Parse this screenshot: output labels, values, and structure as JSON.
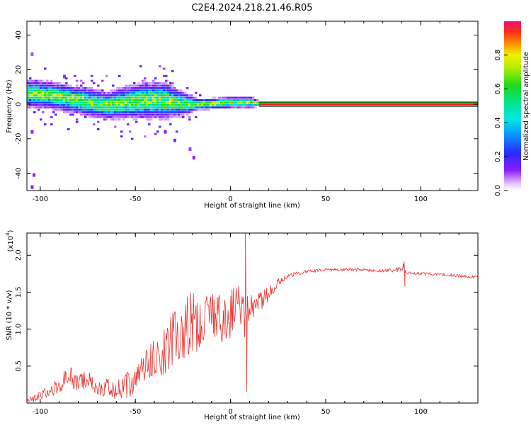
{
  "title": "C2E4.2024.218.21.46.R05",
  "colors": {
    "snr_line": "#e8302e",
    "band_red": "#ee1c22",
    "band_green": "#1fd11f",
    "band_yellow": "#e6e600"
  },
  "chart_data": [
    {
      "type": "heatmap",
      "xlabel": "Height of straight line (km)",
      "ylabel": "Frequency (Hz)",
      "xlim": [
        -107,
        130
      ],
      "ylim": [
        -50,
        48
      ],
      "xticks": [
        "-100",
        "-50",
        "0",
        "50",
        "100"
      ],
      "xtick_values": [
        -100,
        -50,
        0,
        50,
        100
      ],
      "yticks": [
        "-40",
        "-20",
        "0",
        "20",
        "40"
      ],
      "ytick_values": [
        -40,
        -20,
        0,
        20,
        40
      ],
      "colorbar": {
        "label": "Normalized spectral amplitude",
        "range": [
          0,
          1
        ],
        "ticks": [
          "0.0",
          "0.2",
          "0.4",
          "0.6",
          "0.8"
        ],
        "tick_values": [
          0,
          0.2,
          0.4,
          0.6,
          0.8
        ]
      },
      "signal_track": {
        "description_free": true,
        "x": [
          -105,
          -95,
          -85,
          -75,
          -65,
          -55,
          -45,
          -35,
          -25,
          -18,
          -10,
          0,
          10,
          15,
          50,
          100,
          130
        ],
        "frequency": [
          6,
          5,
          3,
          1,
          -1,
          1,
          2,
          2,
          0,
          0,
          0,
          1,
          1,
          0,
          0,
          0,
          0
        ],
        "spread_hz": [
          6,
          6,
          6,
          6,
          6,
          7,
          8,
          8,
          5,
          3,
          3,
          3,
          3,
          1.5,
          1.5,
          1.5,
          1.5
        ]
      }
    },
    {
      "type": "line",
      "xlabel": "Height of straight line (km)",
      "ylabel": "SNR (10 * v/v)",
      "scale_label": "(x10^4)",
      "scale_base": "(x10",
      "scale_exp": "4",
      "xlim": [
        -107,
        130
      ],
      "ylim": [
        0,
        2.3
      ],
      "xticks": [
        "-100",
        "-50",
        "0",
        "50",
        "100"
      ],
      "xtick_values": [
        -100,
        -50,
        0,
        50,
        100
      ],
      "yticks": [
        "0.5",
        "1.0",
        "1.5",
        "2.0"
      ],
      "ytick_values": [
        0.5,
        1.0,
        1.5,
        2.0
      ],
      "series": [
        {
          "name": "SNR",
          "x": [
            -107,
            -100,
            -90,
            -85,
            -80,
            -75,
            -70,
            -65,
            -60,
            -50,
            -45,
            -40,
            -35,
            -30,
            -25,
            -20,
            -15,
            -10,
            -5,
            0,
            5,
            7,
            8,
            10,
            15,
            20,
            25,
            30,
            40,
            50,
            60,
            70,
            80,
            88,
            91,
            92,
            95,
            100,
            110,
            120,
            130
          ],
          "y": [
            0.03,
            0.1,
            0.25,
            0.4,
            0.3,
            0.35,
            0.2,
            0.25,
            0.18,
            0.35,
            0.5,
            0.65,
            0.8,
            0.95,
            1.05,
            1.15,
            1.2,
            1.25,
            1.2,
            1.3,
            1.35,
            1.2,
            1.25,
            1.3,
            1.4,
            1.5,
            1.65,
            1.72,
            1.78,
            1.8,
            1.81,
            1.8,
            1.79,
            1.8,
            1.85,
            1.75,
            1.76,
            1.75,
            1.74,
            1.72,
            1.7
          ],
          "noise": [
            0.03,
            0.08,
            0.12,
            0.15,
            0.12,
            0.15,
            0.12,
            0.12,
            0.15,
            0.2,
            0.25,
            0.3,
            0.35,
            0.4,
            0.45,
            0.45,
            0.35,
            0.3,
            0.35,
            0.35,
            0.3,
            0.3,
            0.25,
            0.2,
            0.15,
            0.1,
            0.05,
            0.03,
            0.02,
            0.02,
            0.02,
            0.02,
            0.02,
            0.03,
            0.05,
            0.03,
            0.02,
            0.02,
            0.02,
            0.02,
            0.02
          ],
          "peaks": [
            {
              "x": 7.8,
              "y": 2.3
            },
            {
              "x": 8.5,
              "y": 0.15
            },
            {
              "x": 91.2,
              "y": 1.92
            },
            {
              "x": 91.6,
              "y": 1.58
            }
          ]
        }
      ]
    }
  ]
}
